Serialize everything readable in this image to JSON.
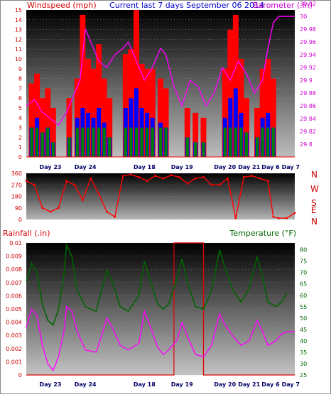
{
  "header": {
    "left": "Windspeed (mph)",
    "center": "Current last 7 days September 06 2014",
    "right": "Barometer (.in)"
  },
  "colors": {
    "windspeed": "#ff0000",
    "barometer": "#ff00ff",
    "direction": "#ff0000",
    "rainfall": "#e00000",
    "temperature": "#006400",
    "dewpoint": "#ff00ff",
    "gust": "#ff0000",
    "average_wind": "#0000ff",
    "calm_band": "#008000"
  },
  "chart_data": [
    {
      "type": "bar",
      "name": "wind-and-barometer",
      "left_axis": {
        "label": "Windspeed (mph)",
        "min": 0,
        "max": 15,
        "ticks": [
          0,
          1,
          2,
          3,
          4,
          5,
          6,
          7,
          8,
          9,
          10,
          11,
          12,
          13,
          14,
          15
        ]
      },
      "right_axis": {
        "label": "Barometer (.in)",
        "min": 29.78,
        "max": 30.01,
        "ticks": [
          "29.8",
          "29.82",
          "29.84",
          "29.86",
          "29.88",
          "29.9",
          "29.92",
          "29.94",
          "29.96",
          "29.98",
          "30",
          "30.02"
        ],
        "tick_values": [
          29.8,
          29.82,
          29.84,
          29.86,
          29.88,
          29.9,
          29.92,
          29.94,
          29.96,
          29.98,
          30.0,
          30.02
        ]
      },
      "days": [
        "Day 23",
        "Day 24",
        "Day 18",
        "Day 19",
        "Day 20",
        "Day 21",
        "Day 6",
        "Day 7"
      ],
      "day_positions": [
        0.09,
        0.22,
        0.44,
        0.58,
        0.74,
        0.83,
        0.91,
        0.985
      ],
      "series": {
        "gust_peaks": [
          {
            "x": 0.02,
            "y": 7.5
          },
          {
            "x": 0.04,
            "y": 8.5
          },
          {
            "x": 0.06,
            "y": 6
          },
          {
            "x": 0.08,
            "y": 7
          },
          {
            "x": 0.1,
            "y": 5
          },
          {
            "x": 0.16,
            "y": 6
          },
          {
            "x": 0.19,
            "y": 8
          },
          {
            "x": 0.21,
            "y": 14.5
          },
          {
            "x": 0.23,
            "y": 10
          },
          {
            "x": 0.25,
            "y": 9
          },
          {
            "x": 0.27,
            "y": 11.5
          },
          {
            "x": 0.29,
            "y": 8
          },
          {
            "x": 0.31,
            "y": 6
          },
          {
            "x": 0.37,
            "y": 10.5
          },
          {
            "x": 0.39,
            "y": 11
          },
          {
            "x": 0.41,
            "y": 15
          },
          {
            "x": 0.43,
            "y": 9.5
          },
          {
            "x": 0.45,
            "y": 9
          },
          {
            "x": 0.47,
            "y": 9
          },
          {
            "x": 0.5,
            "y": 8
          },
          {
            "x": 0.52,
            "y": 7
          },
          {
            "x": 0.6,
            "y": 5
          },
          {
            "x": 0.63,
            "y": 4.5
          },
          {
            "x": 0.66,
            "y": 4
          },
          {
            "x": 0.74,
            "y": 9
          },
          {
            "x": 0.76,
            "y": 13
          },
          {
            "x": 0.78,
            "y": 14.5
          },
          {
            "x": 0.8,
            "y": 10
          },
          {
            "x": 0.82,
            "y": 6
          },
          {
            "x": 0.86,
            "y": 5
          },
          {
            "x": 0.88,
            "y": 9
          },
          {
            "x": 0.9,
            "y": 10
          },
          {
            "x": 0.92,
            "y": 8
          }
        ],
        "wind_average": [
          {
            "x": 0.02,
            "y": 3
          },
          {
            "x": 0.04,
            "y": 4
          },
          {
            "x": 0.06,
            "y": 2.5
          },
          {
            "x": 0.08,
            "y": 3
          },
          {
            "x": 0.1,
            "y": 1.5
          },
          {
            "x": 0.16,
            "y": 2
          },
          {
            "x": 0.19,
            "y": 4
          },
          {
            "x": 0.21,
            "y": 5
          },
          {
            "x": 0.23,
            "y": 4.5
          },
          {
            "x": 0.25,
            "y": 4
          },
          {
            "x": 0.27,
            "y": 5
          },
          {
            "x": 0.29,
            "y": 3.5
          },
          {
            "x": 0.31,
            "y": 2
          },
          {
            "x": 0.37,
            "y": 5
          },
          {
            "x": 0.39,
            "y": 6
          },
          {
            "x": 0.41,
            "y": 7
          },
          {
            "x": 0.43,
            "y": 5
          },
          {
            "x": 0.45,
            "y": 4.5
          },
          {
            "x": 0.47,
            "y": 4
          },
          {
            "x": 0.5,
            "y": 3.5
          },
          {
            "x": 0.52,
            "y": 3
          },
          {
            "x": 0.6,
            "y": 2
          },
          {
            "x": 0.63,
            "y": 1.5
          },
          {
            "x": 0.66,
            "y": 1.5
          },
          {
            "x": 0.74,
            "y": 4
          },
          {
            "x": 0.76,
            "y": 6
          },
          {
            "x": 0.78,
            "y": 7
          },
          {
            "x": 0.8,
            "y": 4.5
          },
          {
            "x": 0.82,
            "y": 2.5
          },
          {
            "x": 0.86,
            "y": 2
          },
          {
            "x": 0.88,
            "y": 4
          },
          {
            "x": 0.9,
            "y": 4.5
          },
          {
            "x": 0.92,
            "y": 3
          }
        ],
        "barometer": [
          {
            "x": 0.0,
            "y": 29.86
          },
          {
            "x": 0.03,
            "y": 29.87
          },
          {
            "x": 0.06,
            "y": 29.85
          },
          {
            "x": 0.09,
            "y": 29.84
          },
          {
            "x": 0.12,
            "y": 29.83
          },
          {
            "x": 0.15,
            "y": 29.85
          },
          {
            "x": 0.18,
            "y": 29.88
          },
          {
            "x": 0.2,
            "y": 29.9
          },
          {
            "x": 0.22,
            "y": 29.98
          },
          {
            "x": 0.24,
            "y": 29.96
          },
          {
            "x": 0.27,
            "y": 29.93
          },
          {
            "x": 0.3,
            "y": 29.92
          },
          {
            "x": 0.33,
            "y": 29.94
          },
          {
            "x": 0.36,
            "y": 29.95
          },
          {
            "x": 0.38,
            "y": 29.96
          },
          {
            "x": 0.41,
            "y": 29.93
          },
          {
            "x": 0.44,
            "y": 29.9
          },
          {
            "x": 0.47,
            "y": 29.92
          },
          {
            "x": 0.5,
            "y": 29.95
          },
          {
            "x": 0.52,
            "y": 29.94
          },
          {
            "x": 0.55,
            "y": 29.89
          },
          {
            "x": 0.58,
            "y": 29.86
          },
          {
            "x": 0.61,
            "y": 29.9
          },
          {
            "x": 0.64,
            "y": 29.89
          },
          {
            "x": 0.67,
            "y": 29.86
          },
          {
            "x": 0.7,
            "y": 29.88
          },
          {
            "x": 0.73,
            "y": 29.92
          },
          {
            "x": 0.76,
            "y": 29.9
          },
          {
            "x": 0.79,
            "y": 29.93
          },
          {
            "x": 0.82,
            "y": 29.91
          },
          {
            "x": 0.85,
            "y": 29.88
          },
          {
            "x": 0.88,
            "y": 29.9
          },
          {
            "x": 0.9,
            "y": 29.95
          },
          {
            "x": 0.92,
            "y": 29.99
          },
          {
            "x": 0.94,
            "y": 30.0
          },
          {
            "x": 1.0,
            "y": 30.0
          }
        ]
      }
    },
    {
      "type": "line",
      "name": "wind-direction",
      "axis": {
        "min": 0,
        "max": 360,
        "ticks": [
          0,
          90,
          180,
          270,
          360
        ]
      },
      "compass": [
        "N",
        "W",
        "S",
        "E",
        "N"
      ],
      "days": [
        "Day 23",
        "Day 24",
        "Day 18",
        "Day 19",
        "Day 20",
        "Day 21",
        "Day 6",
        "Day 7"
      ],
      "values": [
        {
          "x": 0.0,
          "y": 300
        },
        {
          "x": 0.03,
          "y": 270
        },
        {
          "x": 0.06,
          "y": 90
        },
        {
          "x": 0.09,
          "y": 60
        },
        {
          "x": 0.12,
          "y": 90
        },
        {
          "x": 0.15,
          "y": 300
        },
        {
          "x": 0.18,
          "y": 270
        },
        {
          "x": 0.21,
          "y": 150
        },
        {
          "x": 0.24,
          "y": 320
        },
        {
          "x": 0.27,
          "y": 200
        },
        {
          "x": 0.3,
          "y": 60
        },
        {
          "x": 0.33,
          "y": 20
        },
        {
          "x": 0.36,
          "y": 340
        },
        {
          "x": 0.39,
          "y": 350
        },
        {
          "x": 0.42,
          "y": 330
        },
        {
          "x": 0.45,
          "y": 300
        },
        {
          "x": 0.48,
          "y": 340
        },
        {
          "x": 0.51,
          "y": 320
        },
        {
          "x": 0.54,
          "y": 345
        },
        {
          "x": 0.57,
          "y": 330
        },
        {
          "x": 0.6,
          "y": 280
        },
        {
          "x": 0.63,
          "y": 320
        },
        {
          "x": 0.66,
          "y": 330
        },
        {
          "x": 0.69,
          "y": 270
        },
        {
          "x": 0.72,
          "y": 270
        },
        {
          "x": 0.75,
          "y": 320
        },
        {
          "x": 0.78,
          "y": 10
        },
        {
          "x": 0.81,
          "y": 330
        },
        {
          "x": 0.84,
          "y": 340
        },
        {
          "x": 0.87,
          "y": 320
        },
        {
          "x": 0.9,
          "y": 300
        },
        {
          "x": 0.92,
          "y": 20
        },
        {
          "x": 0.94,
          "y": 10
        },
        {
          "x": 0.97,
          "y": 10
        },
        {
          "x": 1.0,
          "y": 50
        }
      ]
    },
    {
      "type": "line",
      "name": "rainfall-and-temperature",
      "left_axis": {
        "label": "Rainfall (.in)",
        "min": 0,
        "max": 0.01,
        "ticks": [
          "0",
          "0.001",
          "0.002",
          "0.003",
          "0.004",
          "0.005",
          "0.006",
          "0.007",
          "0.008",
          "0.009",
          "0.01"
        ],
        "tick_values": [
          0,
          0.001,
          0.002,
          0.003,
          0.004,
          0.005,
          0.006,
          0.007,
          0.008,
          0.009,
          0.01
        ]
      },
      "right_axis": {
        "label": "Temperature (°F)",
        "min": 25,
        "max": 83,
        "ticks": [
          25,
          30,
          35,
          40,
          45,
          50,
          55,
          60,
          65,
          70,
          75,
          80
        ]
      },
      "days": [
        "Day 23",
        "Day 24",
        "Day 18",
        "Day 19",
        "Day 20",
        "Day 21",
        "Day 6",
        "Day 7"
      ],
      "series": {
        "temperature": [
          {
            "x": 0.0,
            "y": 66
          },
          {
            "x": 0.02,
            "y": 74
          },
          {
            "x": 0.04,
            "y": 70
          },
          {
            "x": 0.06,
            "y": 56
          },
          {
            "x": 0.08,
            "y": 49
          },
          {
            "x": 0.1,
            "y": 47
          },
          {
            "x": 0.12,
            "y": 54
          },
          {
            "x": 0.14,
            "y": 69
          },
          {
            "x": 0.15,
            "y": 82
          },
          {
            "x": 0.17,
            "y": 77
          },
          {
            "x": 0.19,
            "y": 62
          },
          {
            "x": 0.22,
            "y": 55
          },
          {
            "x": 0.26,
            "y": 53
          },
          {
            "x": 0.28,
            "y": 62
          },
          {
            "x": 0.3,
            "y": 71
          },
          {
            "x": 0.32,
            "y": 66
          },
          {
            "x": 0.35,
            "y": 55
          },
          {
            "x": 0.38,
            "y": 53
          },
          {
            "x": 0.42,
            "y": 60
          },
          {
            "x": 0.44,
            "y": 75
          },
          {
            "x": 0.46,
            "y": 67
          },
          {
            "x": 0.49,
            "y": 56
          },
          {
            "x": 0.51,
            "y": 54
          },
          {
            "x": 0.53,
            "y": 56
          },
          {
            "x": 0.56,
            "y": 67
          },
          {
            "x": 0.58,
            "y": 76
          },
          {
            "x": 0.6,
            "y": 66
          },
          {
            "x": 0.63,
            "y": 55
          },
          {
            "x": 0.66,
            "y": 54
          },
          {
            "x": 0.69,
            "y": 62
          },
          {
            "x": 0.72,
            "y": 80
          },
          {
            "x": 0.74,
            "y": 72
          },
          {
            "x": 0.77,
            "y": 62
          },
          {
            "x": 0.8,
            "y": 57
          },
          {
            "x": 0.83,
            "y": 63
          },
          {
            "x": 0.86,
            "y": 77
          },
          {
            "x": 0.88,
            "y": 68
          },
          {
            "x": 0.9,
            "y": 57
          },
          {
            "x": 0.93,
            "y": 55
          },
          {
            "x": 0.95,
            "y": 57
          },
          {
            "x": 0.97,
            "y": 61
          }
        ],
        "dewpoint": [
          {
            "x": 0.0,
            "y": 46
          },
          {
            "x": 0.02,
            "y": 54
          },
          {
            "x": 0.04,
            "y": 51
          },
          {
            "x": 0.06,
            "y": 38
          },
          {
            "x": 0.08,
            "y": 30
          },
          {
            "x": 0.1,
            "y": 27
          },
          {
            "x": 0.12,
            "y": 33
          },
          {
            "x": 0.14,
            "y": 44
          },
          {
            "x": 0.15,
            "y": 55
          },
          {
            "x": 0.17,
            "y": 53
          },
          {
            "x": 0.19,
            "y": 44
          },
          {
            "x": 0.22,
            "y": 36
          },
          {
            "x": 0.26,
            "y": 35
          },
          {
            "x": 0.28,
            "y": 42
          },
          {
            "x": 0.3,
            "y": 50
          },
          {
            "x": 0.32,
            "y": 46
          },
          {
            "x": 0.35,
            "y": 38
          },
          {
            "x": 0.38,
            "y": 36
          },
          {
            "x": 0.42,
            "y": 39
          },
          {
            "x": 0.44,
            "y": 53
          },
          {
            "x": 0.46,
            "y": 47
          },
          {
            "x": 0.49,
            "y": 37
          },
          {
            "x": 0.51,
            "y": 34
          },
          {
            "x": 0.53,
            "y": 36
          },
          {
            "x": 0.56,
            "y": 40
          },
          {
            "x": 0.58,
            "y": 48
          },
          {
            "x": 0.6,
            "y": 42
          },
          {
            "x": 0.63,
            "y": 34
          },
          {
            "x": 0.66,
            "y": 33
          },
          {
            "x": 0.69,
            "y": 38
          },
          {
            "x": 0.72,
            "y": 52
          },
          {
            "x": 0.74,
            "y": 47
          },
          {
            "x": 0.77,
            "y": 42
          },
          {
            "x": 0.8,
            "y": 38
          },
          {
            "x": 0.83,
            "y": 40
          },
          {
            "x": 0.86,
            "y": 49
          },
          {
            "x": 0.88,
            "y": 44
          },
          {
            "x": 0.9,
            "y": 38
          },
          {
            "x": 0.93,
            "y": 40
          },
          {
            "x": 0.95,
            "y": 43
          },
          {
            "x": 0.97,
            "y": 44
          },
          {
            "x": 1.0,
            "y": 44
          }
        ],
        "rainfall": [
          {
            "x": 0.0,
            "y": 0
          },
          {
            "x": 0.55,
            "y": 0
          },
          {
            "x": 0.55,
            "y": 0.01
          },
          {
            "x": 0.66,
            "y": 0.01
          },
          {
            "x": 0.66,
            "y": 0
          },
          {
            "x": 1.0,
            "y": 0
          }
        ]
      }
    }
  ]
}
